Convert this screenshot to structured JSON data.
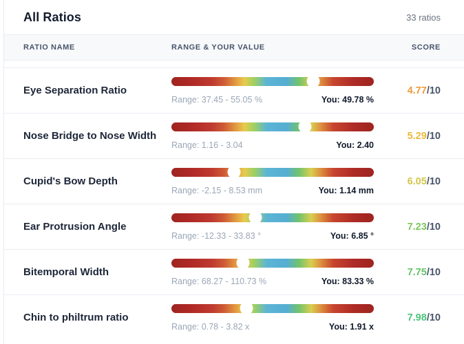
{
  "header": {
    "title": "All Ratios",
    "count_label": "33 ratios"
  },
  "columns": {
    "name": "RATIO NAME",
    "range": "RANGE & YOUR VALUE",
    "score": "SCORE"
  },
  "score_suffix": "/10",
  "bar_gradient": "linear-gradient(90deg, #9e2420 0%, #b02a26 10%, #bf3a2f 20%, #ce5c36 26%, #e0913f 31%, #e8ca4e 36%, #9ed061 41%, #5cb5d5 47%, #55aed2 57%, #72c36c 63%, #d8ce50 69%, #dd8d3e 74%, #c7452f 80%, #ae2b26 90%, #9e2420 100%)",
  "rows": [
    {
      "name": "Eye Separation Ratio",
      "range_label": "Range: 37.45 - 55.05 %",
      "you_label": "You: 49.78 %",
      "score": "4.77",
      "score_color": "#f09a3c",
      "marker_pct": 70
    },
    {
      "name": "Nose Bridge to Nose Width",
      "range_label": "Range: 1.16 - 3.04",
      "you_label": "You: 2.40",
      "score": "5.29",
      "score_color": "#e9b83f",
      "marker_pct": 66
    },
    {
      "name": "Cupid's Bow Depth",
      "range_label": "Range: -2.15 - 8.53 mm",
      "you_label": "You: 1.14 mm",
      "score": "6.05",
      "score_color": "#d3c54b",
      "marker_pct": 30.8
    },
    {
      "name": "Ear Protrusion Angle",
      "range_label": "Range: -12.33 - 33.83 °",
      "you_label": "You: 6.85 °",
      "score": "7.23",
      "score_color": "#7cc65c",
      "marker_pct": 41.5
    },
    {
      "name": "Bitemporal Width",
      "range_label": "Range: 68.27 - 110.73 %",
      "you_label": "You: 83.33 %",
      "score": "7.75",
      "score_color": "#64c468",
      "marker_pct": 35.5
    },
    {
      "name": "Chin to philtrum ratio",
      "range_label": "Range: 0.78 - 3.82 x",
      "you_label": "You: 1.91 x",
      "score": "7.98",
      "score_color": "#4cc47c",
      "marker_pct": 37
    }
  ]
}
